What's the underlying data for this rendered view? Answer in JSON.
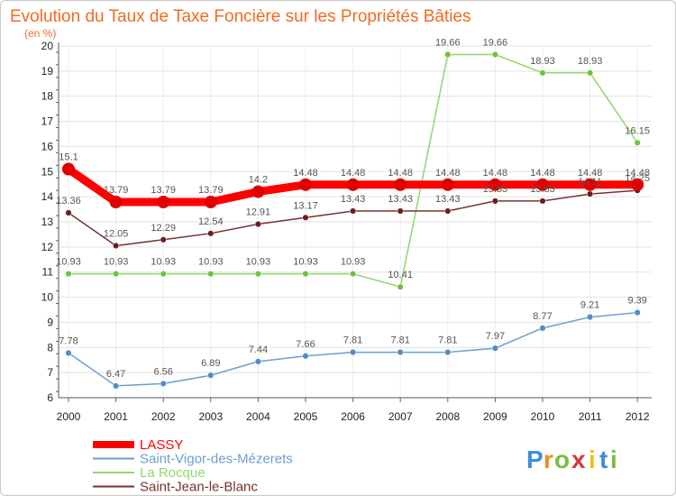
{
  "chart_data": {
    "type": "line",
    "title": "Evolution du Taux de Taxe Foncière sur les Propriétés Bâties",
    "subtitle": "(en %)",
    "xlabel": "",
    "ylabel": "",
    "categories": [
      "2000",
      "2001",
      "2002",
      "2003",
      "2004",
      "2005",
      "2006",
      "2007",
      "2008",
      "2009",
      "2010",
      "2011",
      "2012"
    ],
    "ylim": [
      6,
      20
    ],
    "yticks": [
      "6",
      "7",
      "8",
      "9",
      "10",
      "11",
      "12",
      "13",
      "14",
      "15",
      "16",
      "17",
      "18",
      "19",
      "20"
    ],
    "grid": true,
    "legend_position": "bottom-left",
    "series": [
      {
        "name": "Saint-Vigor-des-Mézerets",
        "color": "#6a9fd0",
        "marker_color": "#4f8cc9",
        "values": [
          7.78,
          6.47,
          6.56,
          6.89,
          7.44,
          7.66,
          7.81,
          7.81,
          7.81,
          7.97,
          8.77,
          9.21,
          9.39
        ],
        "labels": [
          "7.78",
          "6.47",
          "6.56",
          "6.89",
          "7.44",
          "7.66",
          "7.81",
          "7.81",
          "7.81",
          "7.97",
          "8.77",
          "9.21",
          "9.39"
        ]
      },
      {
        "name": "La Rocque",
        "color": "#8fd86a",
        "marker_color": "#6cc43e",
        "values": [
          10.93,
          10.93,
          10.93,
          10.93,
          10.93,
          10.93,
          10.93,
          10.41,
          19.66,
          19.66,
          18.93,
          18.93,
          16.15
        ],
        "labels": [
          "10.93",
          "10.93",
          "10.93",
          "10.93",
          "10.93",
          "10.93",
          "10.93",
          "10.41",
          "19.66",
          "19.66",
          "18.93",
          "18.93",
          "16.15"
        ]
      },
      {
        "name": "Saint-Jean-le-Blanc",
        "color": "#7a3030",
        "marker_color": "#6b1d1d",
        "values": [
          13.36,
          12.05,
          12.29,
          12.54,
          12.91,
          13.17,
          13.43,
          13.43,
          13.43,
          13.83,
          13.83,
          14.11,
          14.25
        ],
        "labels": [
          "13.36",
          "12.05",
          "12.29",
          "12.54",
          "12.91",
          "13.17",
          "13.43",
          "13.43",
          "13.43",
          "13.83",
          "13.83",
          "14.11",
          "14.25"
        ]
      },
      {
        "name": "LASSY",
        "color": "#ff0000",
        "marker_color": "#e00000",
        "values": [
          15.1,
          13.79,
          13.79,
          13.79,
          14.2,
          14.48,
          14.48,
          14.48,
          14.48,
          14.48,
          14.48,
          14.48,
          14.48
        ],
        "labels": [
          "15.1",
          "13.79",
          "13.79",
          "13.79",
          "14.2",
          "14.48",
          "14.48",
          "14.48",
          "14.48",
          "14.48",
          "14.48",
          "14.48",
          "14.48"
        ]
      }
    ],
    "legend": [
      "LASSY",
      "Saint-Vigor-des-Mézerets",
      "La Rocque",
      "Saint-Jean-le-Blanc"
    ],
    "brand": {
      "letters": [
        "P",
        "r",
        "o",
        "x",
        "i",
        "t",
        "i"
      ],
      "colors": [
        "#3d8fd6",
        "#f28c1c",
        "#7bbf3a",
        "#d63a3a",
        "#f2c21c",
        "#3d8fd6",
        "#7bbf3a"
      ]
    }
  }
}
